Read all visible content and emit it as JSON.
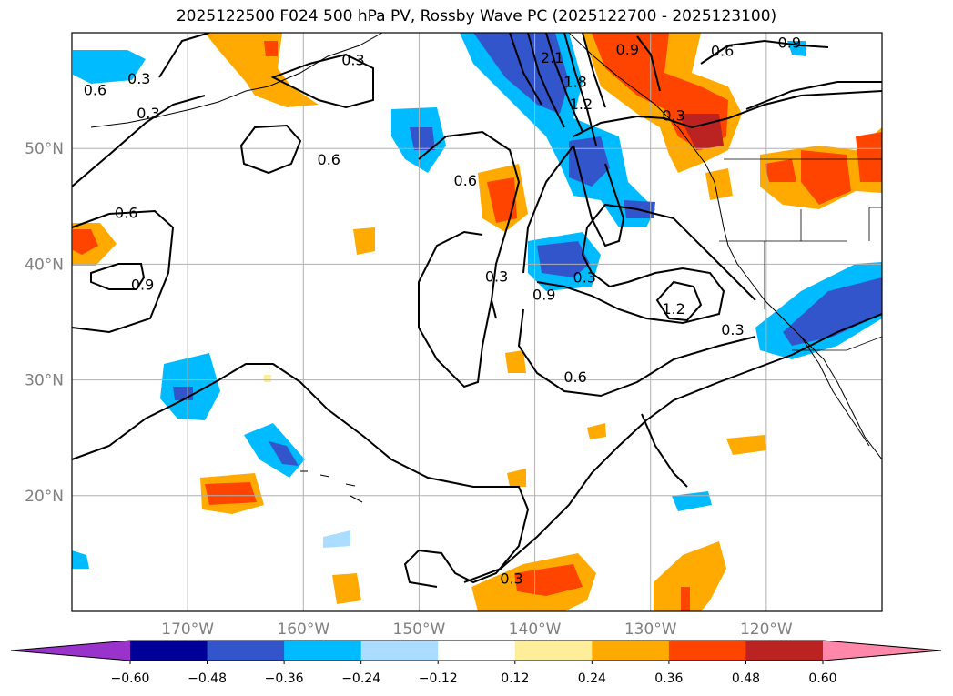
{
  "title": "2025122500 F024 500 hPa PV, Rossby Wave PC (2025122700 - 2025123100)",
  "map": {
    "lon_range": [
      -180,
      -110
    ],
    "lat_range": [
      10,
      60
    ],
    "lon_ticks": [
      {
        "lon": -170,
        "label": "170°W"
      },
      {
        "lon": -160,
        "label": "160°W"
      },
      {
        "lon": -150,
        "label": "150°W"
      },
      {
        "lon": -140,
        "label": "140°W"
      },
      {
        "lon": -130,
        "label": "130°W"
      },
      {
        "lon": -120,
        "label": "120°W"
      }
    ],
    "lat_ticks": [
      {
        "lat": 20,
        "label": "20°N"
      },
      {
        "lat": 30,
        "label": "30°N"
      },
      {
        "lat": 40,
        "label": "40°N"
      },
      {
        "lat": 50,
        "label": "50°N"
      }
    ],
    "grid": true
  },
  "contour_labels": [
    {
      "text": "0.3",
      "lon": -174.2,
      "lat": 56.0
    },
    {
      "text": "0.6",
      "lon": -178.0,
      "lat": 55.0
    },
    {
      "text": "0.6",
      "lon": -157.8,
      "lat": 49.0
    },
    {
      "text": "0.3",
      "lon": -173.4,
      "lat": 53.0
    },
    {
      "text": "0.6",
      "lon": -175.3,
      "lat": 44.4
    },
    {
      "text": "0.9",
      "lon": -173.9,
      "lat": 38.2
    },
    {
      "text": "0.6",
      "lon": -146.0,
      "lat": 47.2
    },
    {
      "text": "0.3",
      "lon": -143.3,
      "lat": 38.9
    },
    {
      "text": "0.3",
      "lon": -155.7,
      "lat": 57.6
    },
    {
      "text": "2.1",
      "lon": -138.5,
      "lat": 57.8
    },
    {
      "text": "1.8",
      "lon": -136.5,
      "lat": 55.7
    },
    {
      "text": "1.2",
      "lon": -136.0,
      "lat": 53.8
    },
    {
      "text": "0.9",
      "lon": -132.0,
      "lat": 58.5
    },
    {
      "text": "0.6",
      "lon": -123.8,
      "lat": 58.4
    },
    {
      "text": "0.9",
      "lon": -118.0,
      "lat": 59.1
    },
    {
      "text": "0.3",
      "lon": -128.0,
      "lat": 52.8
    },
    {
      "text": "0.3",
      "lon": -135.7,
      "lat": 38.8
    },
    {
      "text": "0.9",
      "lon": -139.2,
      "lat": 37.3
    },
    {
      "text": "1.2",
      "lon": -128.0,
      "lat": 36.1
    },
    {
      "text": "0.6",
      "lon": -136.5,
      "lat": 30.2
    },
    {
      "text": "0.3",
      "lon": -122.9,
      "lat": 34.3
    },
    {
      "text": "0.3",
      "lon": -142.0,
      "lat": 12.8
    }
  ],
  "colorbar": {
    "levels": [
      -0.6,
      -0.48,
      -0.36,
      -0.24,
      -0.12,
      0.12,
      0.24,
      0.36,
      0.48,
      0.6
    ],
    "tick_labels": [
      "−0.60",
      "−0.48",
      "−0.36",
      "−0.24",
      "−0.12",
      "0.12",
      "0.24",
      "0.36",
      "0.48",
      "0.60"
    ],
    "colors": [
      "#9933cc",
      "#000099",
      "#3355cc",
      "#00bbff",
      "#aaddff",
      "#ffffff",
      "#ffee99",
      "#ffaa00",
      "#ff4400",
      "#bb2222",
      "#ff88aa"
    ],
    "extend": "both"
  },
  "colors": {
    "land_outline": "#000000",
    "grid": "#b0b0b0",
    "contour": "#000000"
  }
}
